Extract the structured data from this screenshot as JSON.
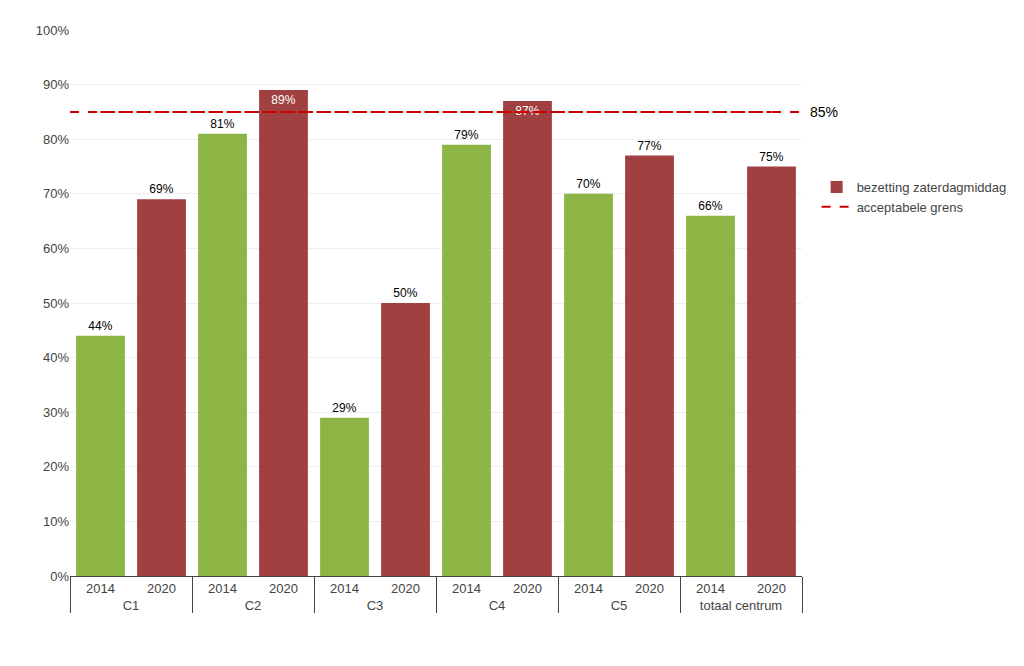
{
  "chart_data": {
    "type": "bar",
    "categories": [
      "C1",
      "C2",
      "C3",
      "C4",
      "C5",
      "totaal centrum"
    ],
    "subcategories": [
      "2014",
      "2020"
    ],
    "series": [
      {
        "color": "#8db546",
        "values": [
          0.44,
          0.81,
          0.29,
          0.79,
          0.7,
          0.66
        ],
        "value_labels": [
          "44%",
          "81%",
          "29%",
          "79%",
          "70%",
          "66%"
        ]
      },
      {
        "name": "bezetting zaterdagmiddag",
        "color": "#a04040",
        "values": [
          0.69,
          0.89,
          0.5,
          0.87,
          0.77,
          0.75
        ],
        "value_labels": [
          "69%",
          "89%",
          "50%",
          "87%",
          "77%",
          "75%"
        ]
      }
    ],
    "reference_line": {
      "name": "acceptabele grens",
      "value": 0.85,
      "label": "85%",
      "color": "#cc0000",
      "line_style": "dashed"
    },
    "ylim": [
      0,
      1.0
    ],
    "yticks": [
      {
        "value": 0.0,
        "label": "0%"
      },
      {
        "value": 0.1,
        "label": "10%"
      },
      {
        "value": 0.2,
        "label": "20%"
      },
      {
        "value": 0.3,
        "label": "30%"
      },
      {
        "value": 0.4,
        "label": "40%"
      },
      {
        "value": 0.5,
        "label": "50%"
      },
      {
        "value": 0.6,
        "label": "60%"
      },
      {
        "value": 0.7,
        "label": "70%"
      },
      {
        "value": 0.8,
        "label": "80%"
      },
      {
        "value": 0.9,
        "label": "90%"
      },
      {
        "value": 1.0,
        "label": "100%"
      }
    ],
    "grid": true,
    "data_labels": true,
    "legend": "right"
  }
}
